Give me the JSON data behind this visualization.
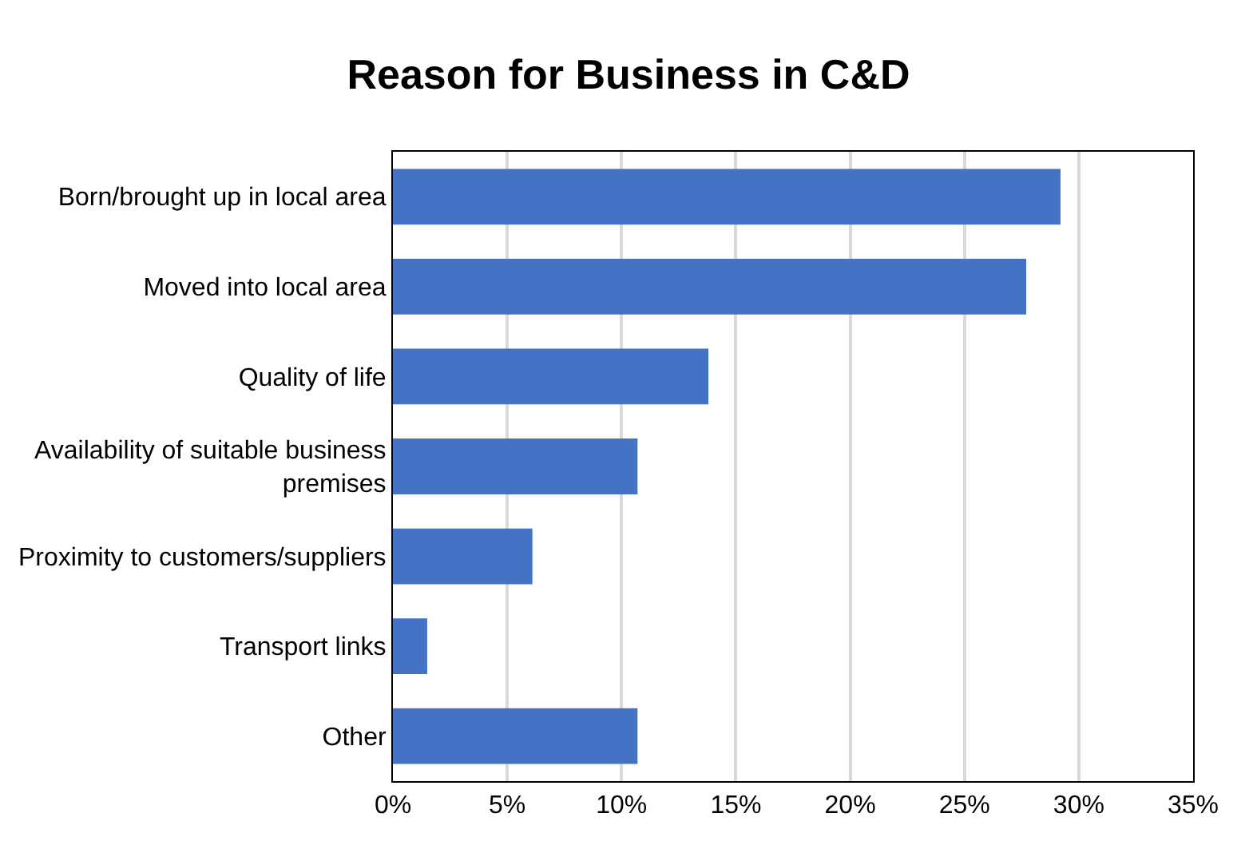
{
  "chart_data": {
    "type": "bar",
    "orientation": "horizontal",
    "title": "Reason for Business in C&D",
    "categories": [
      "Born/brought up in local area",
      "Moved into local area",
      "Quality of life",
      "Availability of suitable business premises",
      "Proximity to customers/suppliers",
      "Transport links",
      "Other"
    ],
    "values": [
      29.2,
      27.7,
      13.8,
      10.7,
      6.1,
      1.5,
      10.7
    ],
    "color": "#4472c4",
    "xlim": [
      0,
      35
    ],
    "xticks": [
      {
        "value": 0,
        "label": "0%"
      },
      {
        "value": 5,
        "label": "5%"
      },
      {
        "value": 10,
        "label": "10%"
      },
      {
        "value": 15,
        "label": "15%"
      },
      {
        "value": 20,
        "label": "20%"
      },
      {
        "value": 25,
        "label": "25%"
      },
      {
        "value": 30,
        "label": "30%"
      },
      {
        "value": 35,
        "label": "35%"
      }
    ],
    "grid": "x"
  }
}
